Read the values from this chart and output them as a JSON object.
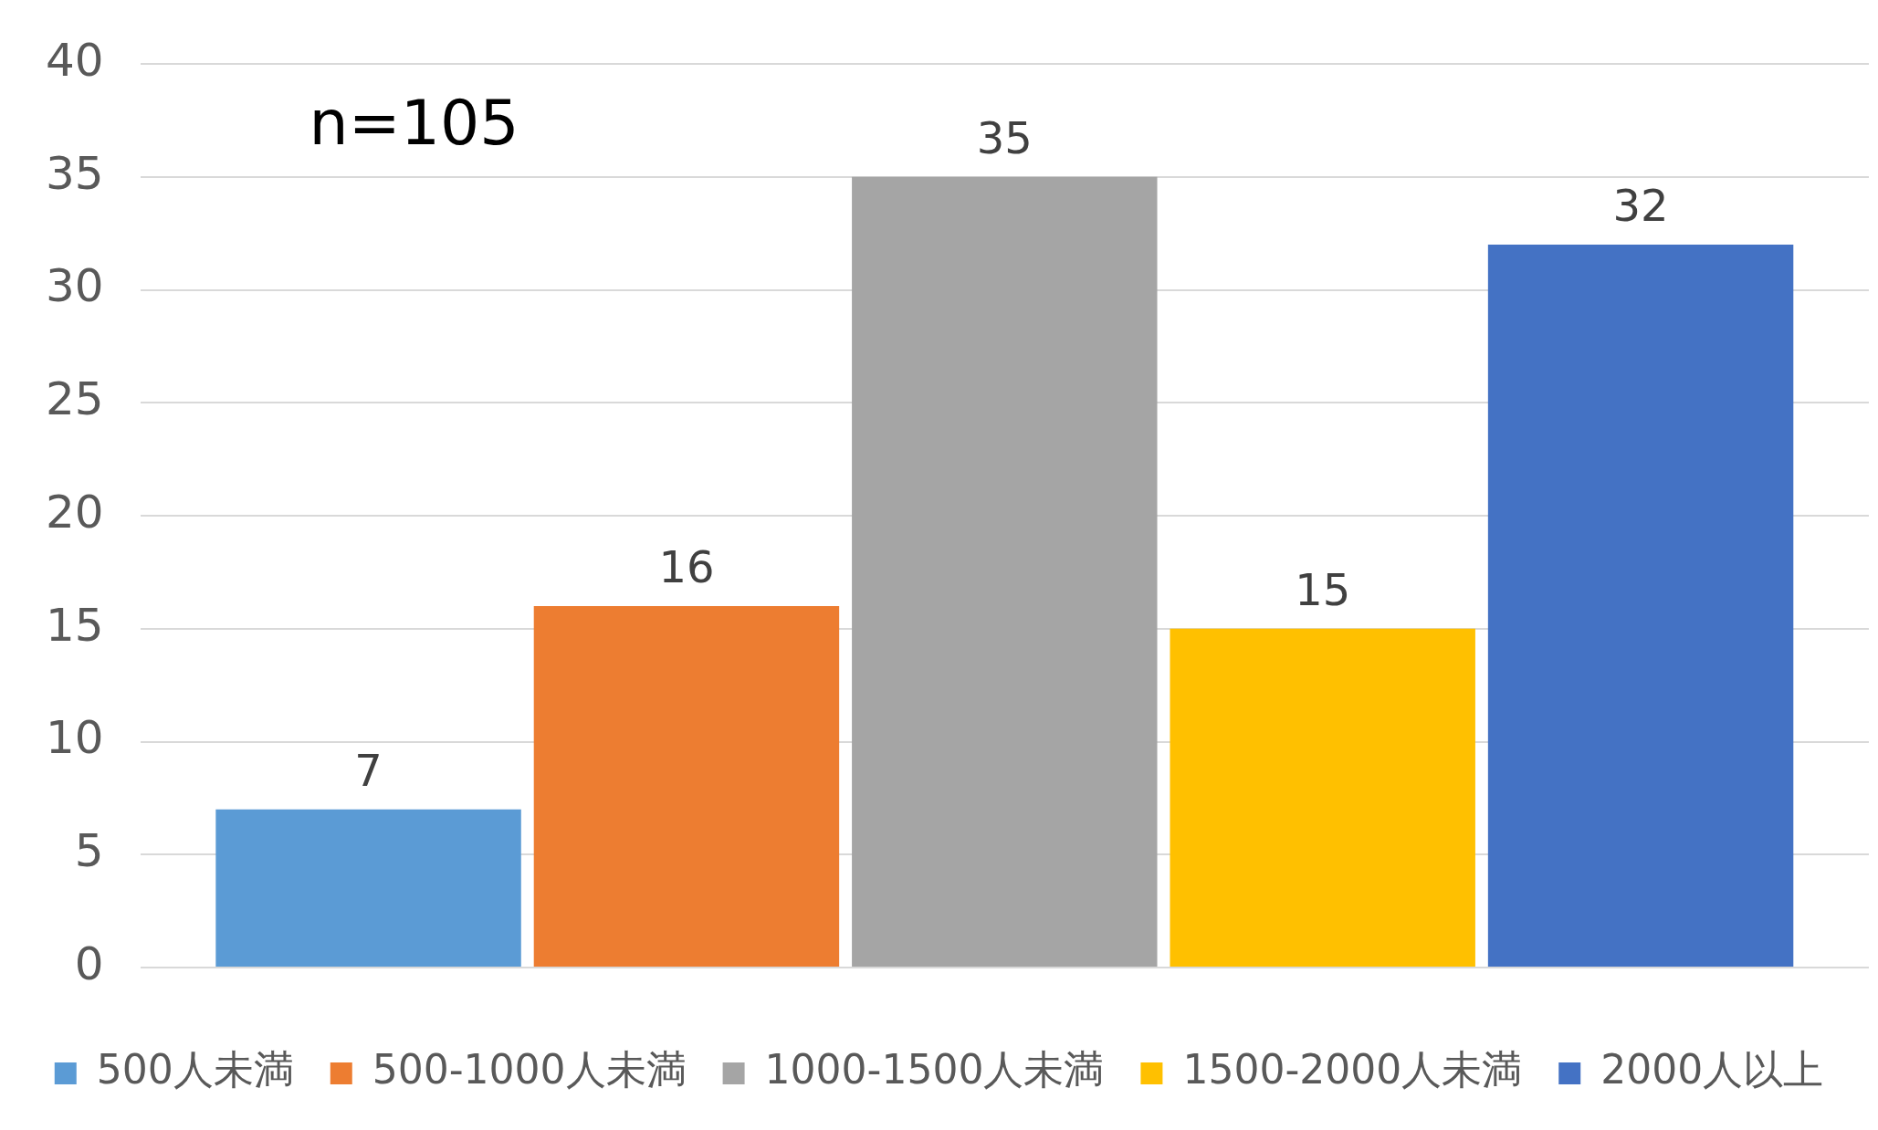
{
  "chart_data": {
    "type": "bar",
    "categories": [
      null
    ],
    "series": [
      {
        "name": "500人未満",
        "color": "#5b9bd5",
        "values": [
          7
        ]
      },
      {
        "name": "500-1000人未満",
        "color": "#ed7d31",
        "values": [
          16
        ]
      },
      {
        "name": "1000-1500人未満",
        "color": "#a5a5a5",
        "values": [
          35
        ]
      },
      {
        "name": "1500-2000人未満",
        "color": "#ffc000",
        "values": [
          15
        ]
      },
      {
        "name": "2000人以上",
        "color": "#4472c4",
        "values": [
          32
        ]
      }
    ],
    "ylim": [
      0,
      40
    ],
    "yticks": [
      0,
      5,
      10,
      15,
      20,
      25,
      30,
      35,
      40
    ],
    "grid": "y",
    "legend": "bottom",
    "data_labels": true,
    "annotations": [
      "n=105"
    ]
  }
}
